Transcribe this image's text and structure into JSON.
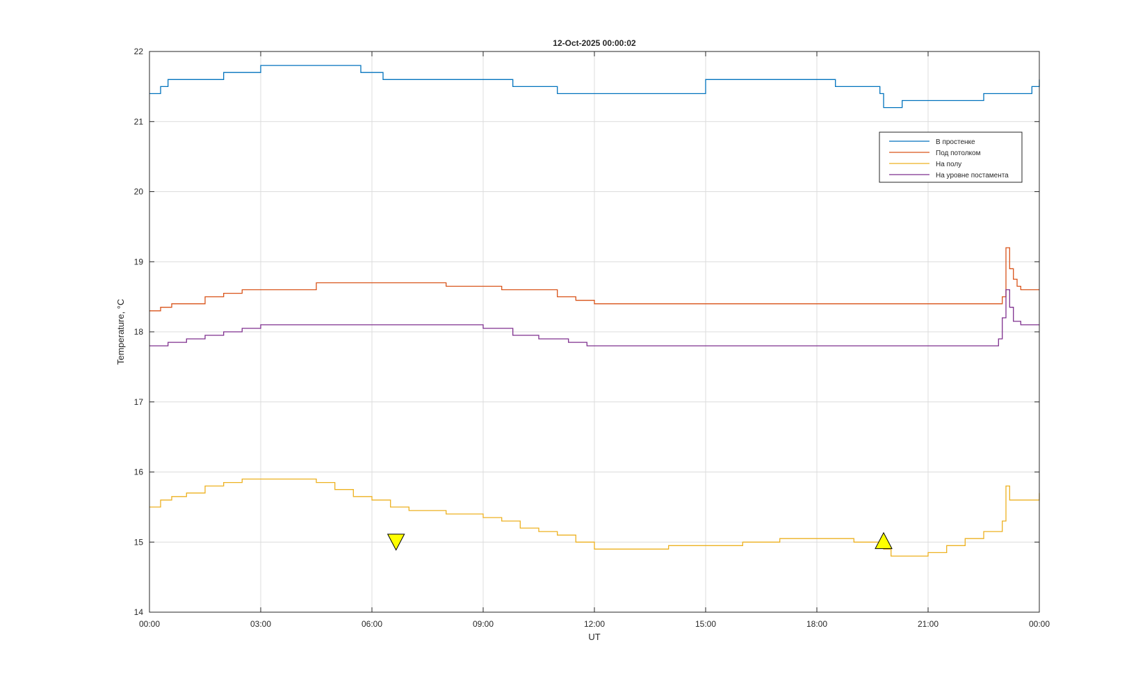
{
  "chart_data": {
    "type": "line",
    "title": "12-Oct-2025 00:00:02",
    "xlabel": "UT",
    "ylabel": "Temperature, °C",
    "xlim": [
      0,
      24
    ],
    "ylim": [
      14,
      22
    ],
    "grid": true,
    "legend_location": "top-right",
    "x_ticks": [
      0,
      3,
      6,
      9,
      12,
      15,
      18,
      21,
      24
    ],
    "x_tick_labels": [
      "00:00",
      "03:00",
      "06:00",
      "09:00",
      "12:00",
      "15:00",
      "18:00",
      "21:00",
      "00:00"
    ],
    "y_ticks": [
      14,
      15,
      16,
      17,
      18,
      19,
      20,
      21,
      22
    ],
    "y_tick_labels": [
      "14",
      "15",
      "16",
      "17",
      "18",
      "19",
      "20",
      "21",
      "22"
    ],
    "series": [
      {
        "name": "В простенке",
        "color": "#0072BD",
        "x": [
          0,
          0.3,
          0.4,
          0.5,
          1.0,
          2.0,
          2.4,
          3.0,
          5.2,
          5.7,
          6.3,
          8.0,
          9.8,
          10.5,
          11.0,
          13.5,
          15.0,
          17.0,
          18.5,
          19.7,
          19.8,
          20.0,
          20.3,
          21.5,
          22.5,
          23.5,
          23.8,
          24
        ],
        "values": [
          21.4,
          21.5,
          21.5,
          21.6,
          21.6,
          21.7,
          21.7,
          21.8,
          21.8,
          21.7,
          21.6,
          21.6,
          21.5,
          21.5,
          21.4,
          21.4,
          21.6,
          21.6,
          21.5,
          21.4,
          21.2,
          21.2,
          21.3,
          21.3,
          21.4,
          21.4,
          21.5,
          21.6
        ]
      },
      {
        "name": "Под потолком",
        "color": "#D95319",
        "x": [
          0,
          0.3,
          0.6,
          1.0,
          1.5,
          2.0,
          2.5,
          3.0,
          4.5,
          5.5,
          8.0,
          9.5,
          11.0,
          11.5,
          12.0,
          19.6,
          20.0,
          22.0,
          22.8,
          23.0,
          23.1,
          23.2,
          23.3,
          23.4,
          23.5,
          24
        ],
        "values": [
          18.3,
          18.35,
          18.4,
          18.4,
          18.5,
          18.55,
          18.6,
          18.6,
          18.7,
          18.7,
          18.65,
          18.6,
          18.5,
          18.45,
          18.4,
          18.4,
          18.4,
          18.4,
          18.4,
          18.5,
          19.2,
          18.9,
          18.75,
          18.65,
          18.6,
          18.6
        ]
      },
      {
        "name": "На полу",
        "color": "#EDB120",
        "x": [
          0,
          0.3,
          0.6,
          1.0,
          1.5,
          2.0,
          2.5,
          3.0,
          4.0,
          4.5,
          5.0,
          5.5,
          6.0,
          6.5,
          7.0,
          8.0,
          9.0,
          9.5,
          10.0,
          10.5,
          11.0,
          11.5,
          12.0,
          13.0,
          14.0,
          15.0,
          16.0,
          17.0,
          18.0,
          19.0,
          19.8,
          20.0,
          20.5,
          21.0,
          21.5,
          22.0,
          22.5,
          23.0,
          23.1,
          23.2,
          23.5,
          24
        ],
        "values": [
          15.5,
          15.6,
          15.65,
          15.7,
          15.8,
          15.85,
          15.9,
          15.9,
          15.9,
          15.85,
          15.75,
          15.65,
          15.6,
          15.5,
          15.45,
          15.4,
          15.35,
          15.3,
          15.2,
          15.15,
          15.1,
          15.0,
          14.9,
          14.9,
          14.95,
          14.95,
          15.0,
          15.05,
          15.05,
          15.0,
          14.9,
          14.8,
          14.8,
          14.85,
          14.95,
          15.05,
          15.15,
          15.3,
          15.8,
          15.6,
          15.6,
          15.7
        ]
      },
      {
        "name": "На уровне постамента",
        "color": "#7E2F8E",
        "x": [
          0,
          0.5,
          1.0,
          1.5,
          2.0,
          2.5,
          3.0,
          5.0,
          7.5,
          9.0,
          9.8,
          10.5,
          11.3,
          11.8,
          12.0,
          19.7,
          20.0,
          21.0,
          22.0,
          22.9,
          23.0,
          23.1,
          23.2,
          23.3,
          23.5,
          24
        ],
        "values": [
          17.8,
          17.85,
          17.9,
          17.95,
          18.0,
          18.05,
          18.1,
          18.1,
          18.1,
          18.05,
          17.95,
          17.9,
          17.85,
          17.8,
          17.8,
          17.8,
          17.8,
          17.8,
          17.8,
          17.9,
          18.2,
          18.6,
          18.35,
          18.15,
          18.1,
          18.1
        ]
      }
    ],
    "markers": [
      {
        "type": "triangle-down",
        "x": 6.65,
        "y": 15.0,
        "color": "#FFFF00"
      },
      {
        "type": "triangle-up",
        "x": 19.8,
        "y": 15.02,
        "color": "#FFFF00"
      }
    ]
  }
}
